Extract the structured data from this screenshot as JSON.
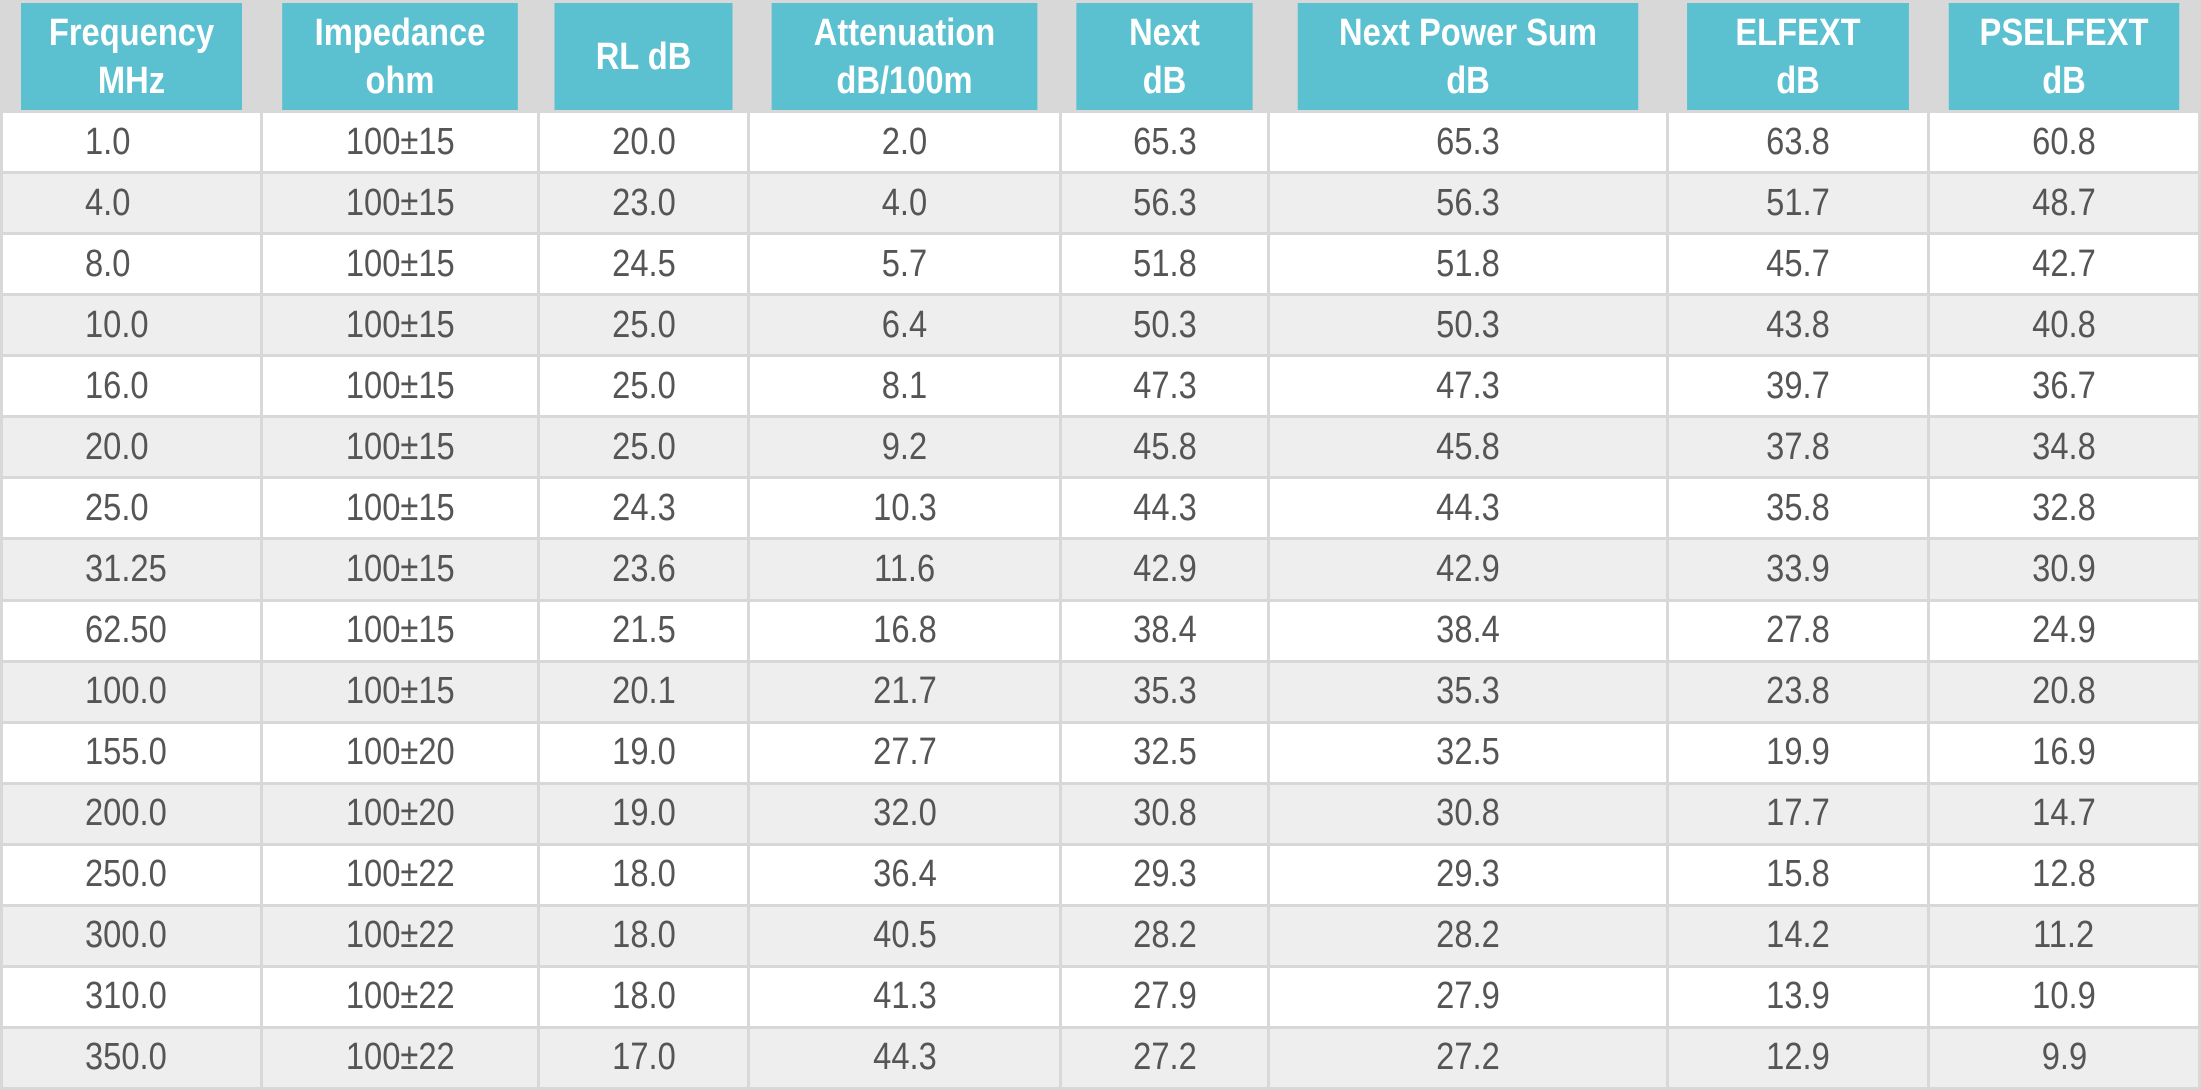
{
  "table": {
    "headers": [
      {
        "line1": "Frequency",
        "line2": "MHz"
      },
      {
        "line1": "Impedance",
        "line2": "ohm"
      },
      {
        "line1": "RL dB",
        "line2": ""
      },
      {
        "line1": "Attenuation",
        "line2": "dB/100m"
      },
      {
        "line1": "Next",
        "line2": "dB"
      },
      {
        "line1": "Next Power Sum",
        "line2": "dB"
      },
      {
        "line1": "ELFEXT",
        "line2": "dB"
      },
      {
        "line1": "PSELFEXT",
        "line2": "dB"
      }
    ],
    "rows": [
      [
        "1.0",
        "100±15",
        "20.0",
        "2.0",
        "65.3",
        "65.3",
        "63.8",
        "60.8"
      ],
      [
        "4.0",
        "100±15",
        "23.0",
        "4.0",
        "56.3",
        "56.3",
        "51.7",
        "48.7"
      ],
      [
        "8.0",
        "100±15",
        "24.5",
        "5.7",
        "51.8",
        "51.8",
        "45.7",
        "42.7"
      ],
      [
        "10.0",
        "100±15",
        "25.0",
        "6.4",
        "50.3",
        "50.3",
        "43.8",
        "40.8"
      ],
      [
        "16.0",
        "100±15",
        "25.0",
        "8.1",
        "47.3",
        "47.3",
        "39.7",
        "36.7"
      ],
      [
        "20.0",
        "100±15",
        "25.0",
        "9.2",
        "45.8",
        "45.8",
        "37.8",
        "34.8"
      ],
      [
        "25.0",
        "100±15",
        "24.3",
        "10.3",
        "44.3",
        "44.3",
        "35.8",
        "32.8"
      ],
      [
        "31.25",
        "100±15",
        "23.6",
        "11.6",
        "42.9",
        "42.9",
        "33.9",
        "30.9"
      ],
      [
        "62.50",
        "100±15",
        "21.5",
        "16.8",
        "38.4",
        "38.4",
        "27.8",
        "24.9"
      ],
      [
        "100.0",
        "100±15",
        "20.1",
        "21.7",
        "35.3",
        "35.3",
        "23.8",
        "20.8"
      ],
      [
        "155.0",
        "100±20",
        "19.0",
        "27.7",
        "32.5",
        "32.5",
        "19.9",
        "16.9"
      ],
      [
        "200.0",
        "100±20",
        "19.0",
        "32.0",
        "30.8",
        "30.8",
        "17.7",
        "14.7"
      ],
      [
        "250.0",
        "100±22",
        "18.0",
        "36.4",
        "29.3",
        "29.3",
        "15.8",
        "12.8"
      ],
      [
        "300.0",
        "100±22",
        "18.0",
        "40.5",
        "28.2",
        "28.2",
        "14.2",
        "11.2"
      ],
      [
        "310.0",
        "100±22",
        "18.0",
        "41.3",
        "27.9",
        "27.9",
        "13.9",
        "10.9"
      ],
      [
        "350.0",
        "100±22",
        "17.0",
        "44.3",
        "27.2",
        "27.2",
        "12.9",
        "9.9"
      ]
    ]
  },
  "colors": {
    "header_bg": "#5bc0d0",
    "header_text": "#ffffff",
    "row_odd": "#ffffff",
    "row_even": "#eeeeee",
    "grid": "#d8d8d8",
    "cell_text": "#555555"
  }
}
